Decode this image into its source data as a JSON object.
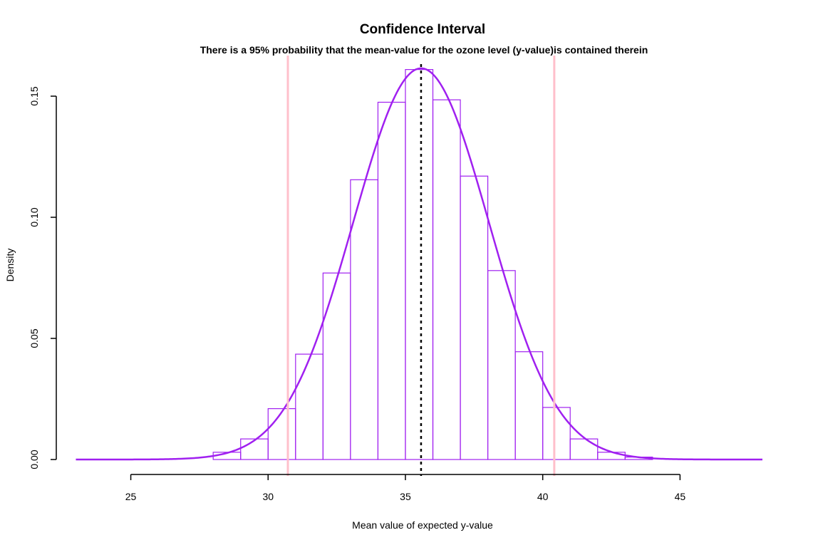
{
  "chart_data": {
    "type": "histogram",
    "title": "Confidence Interval",
    "subtitle": "There is a 95% probability that the mean-value for the ozone level (y-value)is contained therein",
    "xlabel": "Mean value of expected y-value",
    "ylabel": "Density",
    "xlim": [
      22.3,
      48.0
    ],
    "ylim": [
      0,
      0.16
    ],
    "x_ticks": [
      25,
      30,
      35,
      40,
      45
    ],
    "x_tick_labels": [
      "25",
      "30",
      "35",
      "40",
      "45"
    ],
    "y_ticks": [
      0.0,
      0.05,
      0.1,
      0.15
    ],
    "y_tick_labels": [
      "0.00",
      "0.05",
      "0.10",
      "0.15"
    ],
    "grid": false,
    "legend": "none",
    "bins": [
      {
        "x0": 28,
        "x1": 29,
        "density": 0.003
      },
      {
        "x0": 29,
        "x1": 30,
        "density": 0.0085
      },
      {
        "x0": 30,
        "x1": 31,
        "density": 0.021
      },
      {
        "x0": 31,
        "x1": 32,
        "density": 0.0435
      },
      {
        "x0": 32,
        "x1": 33,
        "density": 0.077
      },
      {
        "x0": 33,
        "x1": 34,
        "density": 0.1155
      },
      {
        "x0": 34,
        "x1": 35,
        "density": 0.1475
      },
      {
        "x0": 35,
        "x1": 36,
        "density": 0.161
      },
      {
        "x0": 36,
        "x1": 37,
        "density": 0.1485
      },
      {
        "x0": 37,
        "x1": 38,
        "density": 0.117
      },
      {
        "x0": 38,
        "x1": 39,
        "density": 0.078
      },
      {
        "x0": 39,
        "x1": 40,
        "density": 0.0445
      },
      {
        "x0": 40,
        "x1": 41,
        "density": 0.0215
      },
      {
        "x0": 41,
        "x1": 42,
        "density": 0.0085
      },
      {
        "x0": 42,
        "x1": 43,
        "density": 0.003
      },
      {
        "x0": 43,
        "x1": 44,
        "density": 0.001
      }
    ],
    "density_curve": {
      "mean": 35.57,
      "sd": 2.47,
      "x_from": 23.0,
      "x_to": 48.0
    },
    "mean_line": 35.57,
    "confidence_interval": [
      30.72,
      40.42
    ],
    "colors": {
      "histogram": "#a020f0",
      "curve": "#a020f0",
      "mean_line": "#000000",
      "interval_lines": "#ffc0cb"
    }
  }
}
